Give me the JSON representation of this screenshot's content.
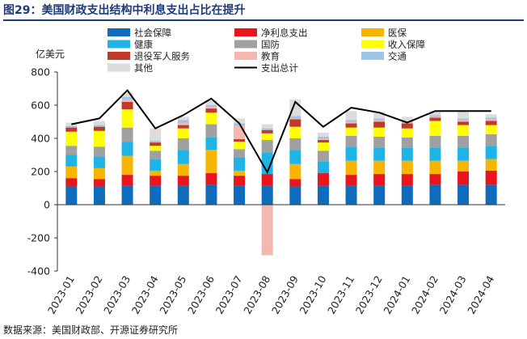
{
  "title": "图29：美国财政支出结构中利息支出占比在提升",
  "source": "数据来源：美国财政部、开源证券研究所",
  "chart_data": {
    "type": "bar",
    "stacked": true,
    "title": "图29：美国财政支出结构中利息支出占比在提升",
    "ylabel": "亿美元",
    "ylim": [
      -400,
      800
    ],
    "yticks": [
      "800",
      "600",
      "400",
      "200",
      "0",
      "-200",
      "-400"
    ],
    "ytick_values": [
      800,
      600,
      400,
      200,
      0,
      -200,
      -400
    ],
    "grid": false,
    "legend_position": "top",
    "categories": [
      "2023-01",
      "2023-02",
      "2023-03",
      "2023-04",
      "2023-05",
      "2023-06",
      "2023-07",
      "2023-08",
      "2023-09",
      "2023-10",
      "2023-11",
      "2023-12",
      "2024-01",
      "2024-02",
      "2024-03",
      "2024-04"
    ],
    "series": [
      {
        "name": "社会保障",
        "color": "#0f6cbd",
        "values": [
          110,
          110,
          115,
          115,
          115,
          120,
          115,
          115,
          110,
          115,
          115,
          115,
          115,
          120,
          120,
          120
        ]
      },
      {
        "name": "净利息支出",
        "color": "#e8141e",
        "values": [
          50,
          45,
          65,
          60,
          60,
          70,
          60,
          70,
          45,
          75,
          65,
          70,
          70,
          65,
          80,
          85
        ]
      },
      {
        "name": "医保",
        "color": "#f7b500",
        "values": [
          70,
          65,
          115,
          30,
          70,
          140,
          30,
          0,
          90,
          0,
          85,
          80,
          80,
          80,
          65,
          70
        ]
      },
      {
        "name": "健康",
        "color": "#1fb4e6",
        "values": [
          70,
          70,
          85,
          70,
          85,
          75,
          80,
          130,
          85,
          70,
          85,
          80,
          80,
          80,
          80,
          80
        ]
      },
      {
        "name": "国防",
        "color": "#a0a0a0",
        "values": [
          55,
          60,
          85,
          50,
          70,
          80,
          50,
          75,
          70,
          65,
          65,
          65,
          60,
          70,
          70,
          70
        ]
      },
      {
        "name": "收入保障",
        "color": "#ffff00",
        "values": [
          85,
          95,
          110,
          30,
          60,
          70,
          45,
          40,
          70,
          50,
          50,
          55,
          55,
          90,
          65,
          55
        ]
      },
      {
        "name": "退役军人服务",
        "color": "#c0392b",
        "values": [
          25,
          25,
          45,
          20,
          20,
          25,
          15,
          20,
          45,
          15,
          25,
          35,
          30,
          20,
          20,
          25
        ]
      },
      {
        "name": "教育",
        "color": "#f4b8b0",
        "values": [
          0,
          0,
          15,
          0,
          15,
          10,
          80,
          -305,
          5,
          10,
          10,
          10,
          5,
          5,
          10,
          10
        ]
      },
      {
        "name": "交通",
        "color": "#9dc3e6",
        "values": [
          10,
          10,
          15,
          10,
          15,
          10,
          15,
          10,
          15,
          10,
          10,
          10,
          10,
          10,
          10,
          10
        ]
      },
      {
        "name": "其他",
        "color": "#dcdcdc",
        "values": [
          20,
          25,
          25,
          75,
          20,
          30,
          30,
          25,
          100,
          25,
          55,
          40,
          25,
          25,
          40,
          20
        ]
      }
    ],
    "total": {
      "name": "支出总计",
      "color": "#000000",
      "values": [
        485,
        520,
        690,
        460,
        540,
        640,
        490,
        195,
        620,
        470,
        585,
        555,
        495,
        565,
        565,
        565
      ]
    }
  }
}
